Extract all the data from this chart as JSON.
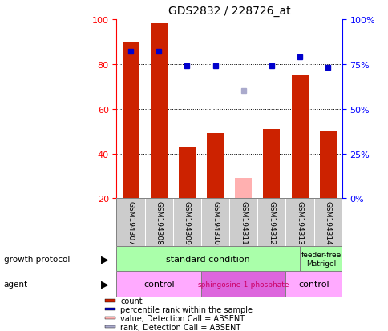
{
  "title": "GDS2832 / 228726_at",
  "samples": [
    "GSM194307",
    "GSM194308",
    "GSM194309",
    "GSM194310",
    "GSM194311",
    "GSM194312",
    "GSM194313",
    "GSM194314"
  ],
  "count_values": [
    90,
    98,
    43,
    49,
    null,
    51,
    75,
    50
  ],
  "count_absent_values": [
    null,
    null,
    null,
    null,
    29,
    null,
    null,
    null
  ],
  "percentile_values": [
    82,
    82,
    74,
    74,
    null,
    74,
    79,
    73
  ],
  "percentile_absent_values": [
    null,
    null,
    null,
    null,
    60,
    null,
    null,
    null
  ],
  "ylim_left": [
    20,
    100
  ],
  "ylim_right": [
    0,
    100
  ],
  "yticks_left": [
    20,
    40,
    60,
    80,
    100
  ],
  "yticks_right": [
    0,
    25,
    50,
    75,
    100
  ],
  "ytick_labels_right": [
    "0%",
    "25%",
    "50%",
    "75%",
    "100%"
  ],
  "bar_color": "#cc2200",
  "bar_absent_color": "#ffb0b0",
  "dot_color": "#0000cc",
  "dot_absent_color": "#aaaacc",
  "sample_label_bg": "#cccccc",
  "gp_color": "#aaffaa",
  "agent_light_color": "#ffaaff",
  "agent_dark_color": "#dd66dd",
  "agent_dark_text": "#cc0066",
  "legend_items": [
    {
      "color": "#cc2200",
      "label": "count"
    },
    {
      "color": "#0000cc",
      "label": "percentile rank within the sample"
    },
    {
      "color": "#ffb0b0",
      "label": "value, Detection Call = ABSENT"
    },
    {
      "color": "#aaaacc",
      "label": "rank, Detection Call = ABSENT"
    }
  ]
}
